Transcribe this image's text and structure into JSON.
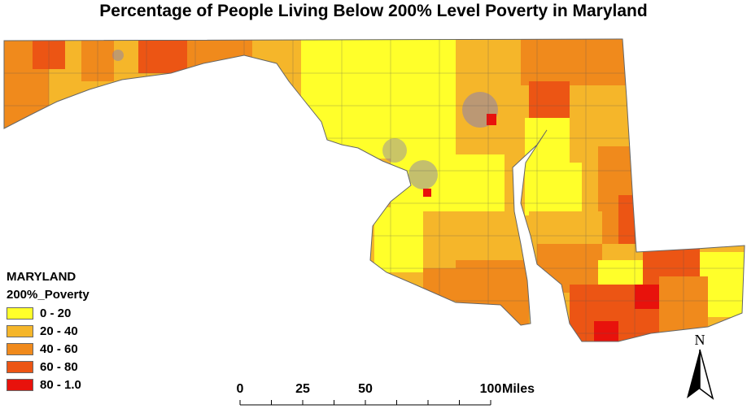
{
  "title": "Percentage of People Living Below 200% Level Poverty in Maryland",
  "legend": {
    "title": "MARYLAND",
    "field": "200%_Poverty",
    "classes": [
      {
        "label": "0 - 20",
        "color": "#ffff2a"
      },
      {
        "label": "20 - 40",
        "color": "#f5b62a"
      },
      {
        "label": "40 - 60",
        "color": "#f08a1c"
      },
      {
        "label": "60 - 80",
        "color": "#ec5514"
      },
      {
        "label": "80 - 1.0",
        "color": "#e8120c"
      }
    ]
  },
  "scale_bar": {
    "ticks": [
      "0",
      "25",
      "50",
      "100"
    ],
    "tick_values": [
      0,
      25,
      50,
      100
    ],
    "units": "Miles"
  },
  "north_arrow": {
    "label": "N",
    "icon": "north-arrow-icon"
  },
  "colors": {
    "boundary": "#666666",
    "tract_lines": "#555555"
  }
}
